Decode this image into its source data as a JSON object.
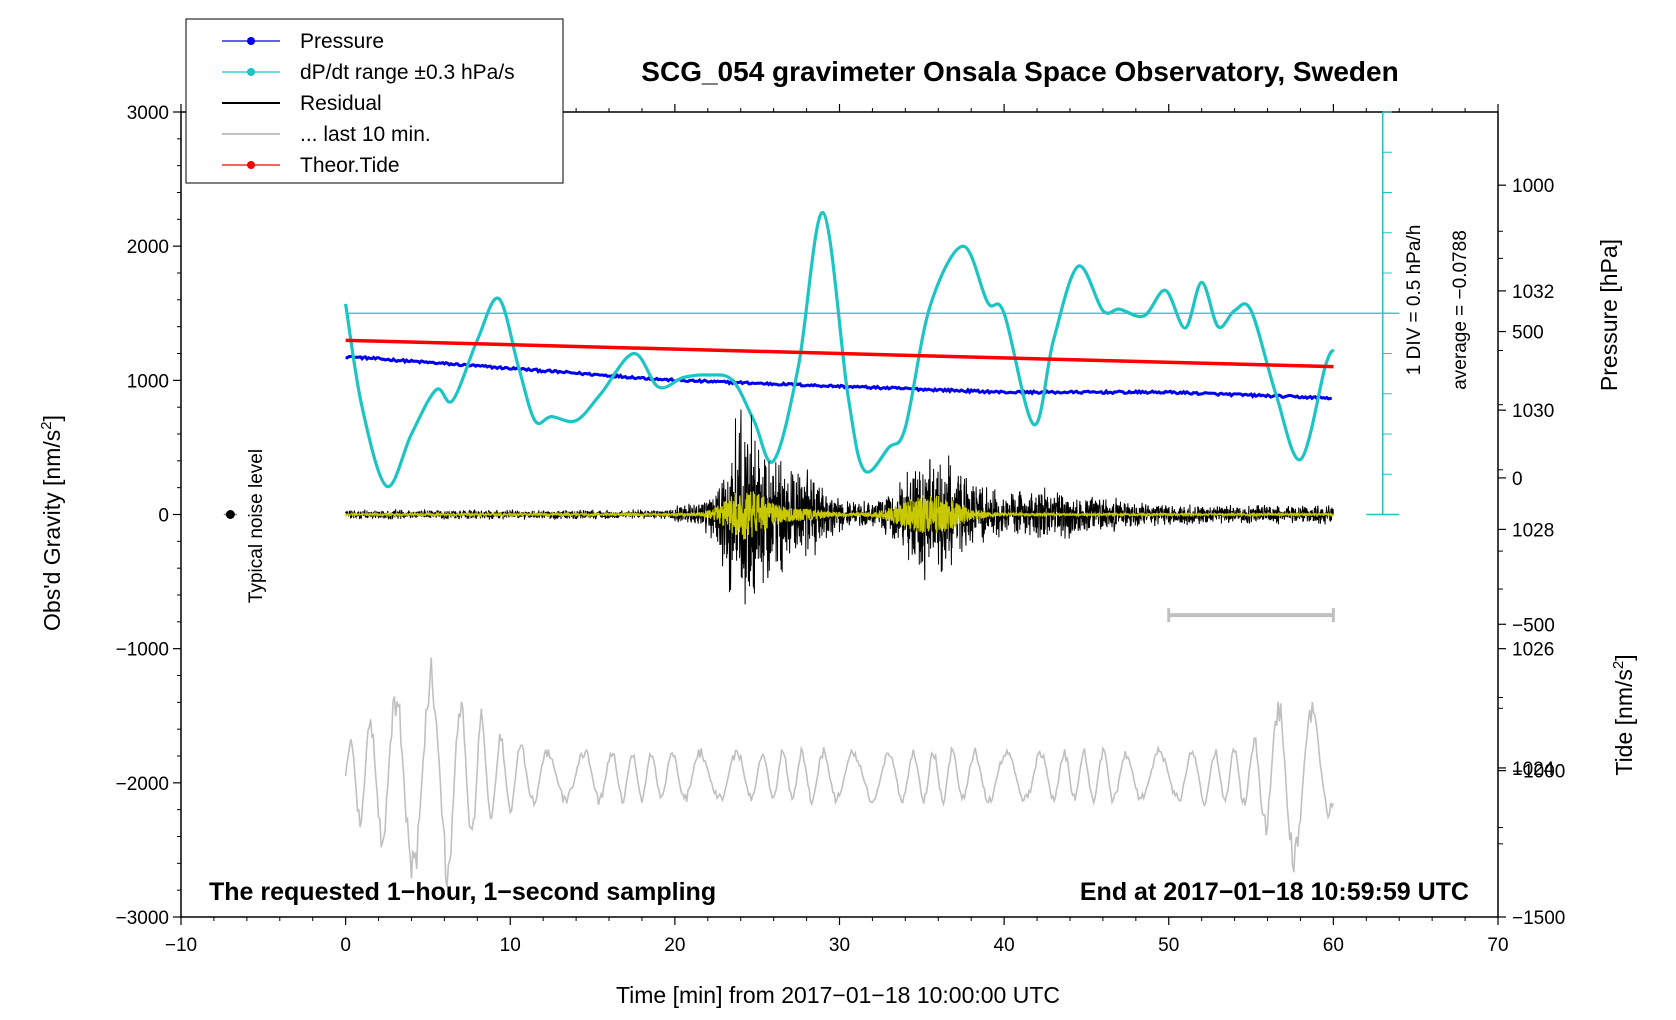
{
  "chart_data": {
    "type": "line",
    "title": "SCG_054 gravimeter Onsala Space Observatory, Sweden",
    "xlabel": "Time [min] from 2017−01−18 10:00:00 UTC",
    "ylabel_left_main": "Obs'd Gravity [nm/s",
    "ylabel_left_sup": "2",
    "ylabel_left_end": "]",
    "ylabel_right_pressure": "Pressure [hPa]",
    "ylabel_right_tide_main": "Tide [nm/s",
    "ylabel_right_tide_sup": "2",
    "ylabel_right_tide_end": "]",
    "xlim": [
      -10,
      70
    ],
    "ylim_gravity": [
      -3000,
      3000
    ],
    "ylim_pressure": [
      1021.5,
      1035
    ],
    "ylim_tide": [
      -1500,
      1250
    ],
    "x_ticks": [
      -10,
      0,
      10,
      20,
      30,
      40,
      50,
      60,
      70
    ],
    "x_tick_labels": [
      "−10",
      "0",
      "10",
      "20",
      "30",
      "40",
      "50",
      "60",
      "70"
    ],
    "gravity_ticks": [
      -3000,
      -2000,
      -1000,
      0,
      1000,
      2000,
      3000
    ],
    "gravity_tick_labels": [
      "−3000",
      "−2000",
      "−1000",
      "0",
      "1000",
      "2000",
      "3000"
    ],
    "pressure_ticks": [
      1024,
      1026,
      1028,
      1030,
      1032
    ],
    "pressure_tick_labels": [
      "1024",
      "1026",
      "1028",
      "1030",
      "1032"
    ],
    "tide_ticks": [
      -1500,
      -1000,
      -500,
      0,
      500,
      1000
    ],
    "tide_tick_labels": [
      "−1500",
      "−1000",
      "−500",
      "0",
      "500",
      "1000"
    ],
    "series": [
      {
        "name": "Pressure",
        "color": "#0000ee",
        "axis": "pressure",
        "x": [
          0,
          10,
          20,
          30,
          40,
          50,
          60
        ],
        "y": [
          1030.9,
          1030.7,
          1030.5,
          1030.4,
          1030.3,
          1030.3,
          1030.2
        ]
      },
      {
        "name": "dP/dt range ±0.3 hPa/s",
        "color": "#1cc4c4",
        "axis": "gravity",
        "x": [
          0,
          1,
          2.5,
          4,
          5.5,
          6.5,
          8,
          9.3,
          10.5,
          11.5,
          12.5,
          14,
          15.5,
          17.5,
          19,
          20.5,
          22,
          23.5,
          24.8,
          26,
          27.5,
          29,
          30.5,
          31.5,
          33,
          34,
          35.5,
          37.5,
          39,
          40,
          41.8,
          43,
          44.5,
          46,
          47,
          48.5,
          49.8,
          51,
          52,
          53,
          54,
          55,
          56.5,
          58,
          59.5,
          60
        ],
        "y": [
          1570,
          800,
          210,
          600,
          930,
          850,
          1300,
          1610,
          1100,
          700,
          730,
          700,
          900,
          1200,
          950,
          1020,
          1040,
          1000,
          700,
          400,
          1100,
          2250,
          900,
          330,
          500,
          650,
          1550,
          2000,
          1580,
          1500,
          670,
          1300,
          1850,
          1520,
          1530,
          1480,
          1670,
          1390,
          1730,
          1400,
          1520,
          1520,
          900,
          410,
          1100,
          1230
        ]
      },
      {
        "name": "Residual",
        "color": "#000000",
        "axis": "gravity"
      },
      {
        "name": "... last 10 min.",
        "color": "#c0c0c0",
        "axis": "gravity"
      },
      {
        "name": "Theor.Tide",
        "color": "#ff0000",
        "axis": "tide",
        "x": [
          0,
          60
        ],
        "y": [
          470,
          380
        ]
      }
    ],
    "dpdt_reference": {
      "level": 1500,
      "division_text": "1 DIV = 0.5 hPa/h",
      "average_text": "average = −0.0788"
    },
    "noise_level_label": "Typical noise level",
    "annotation_left": "The requested 1−hour, 1−second sampling",
    "annotation_right": "End at 2017−01−18 10:59:59 UTC",
    "last10_bar": [
      50,
      60
    ]
  },
  "legend": {
    "items": [
      {
        "label": "Pressure",
        "color": "#0000ee",
        "dot": true
      },
      {
        "label": "dP/dt range ±0.3 hPa/s",
        "color": "#1cc4c4",
        "dot": true
      },
      {
        "label": "Residual",
        "color": "#000000",
        "dot": false
      },
      {
        "label": "... last 10 min.",
        "color": "#c0c0c0",
        "dot": false
      },
      {
        "label": "Theor.Tide",
        "color": "#ff0000",
        "dot": true
      }
    ]
  }
}
